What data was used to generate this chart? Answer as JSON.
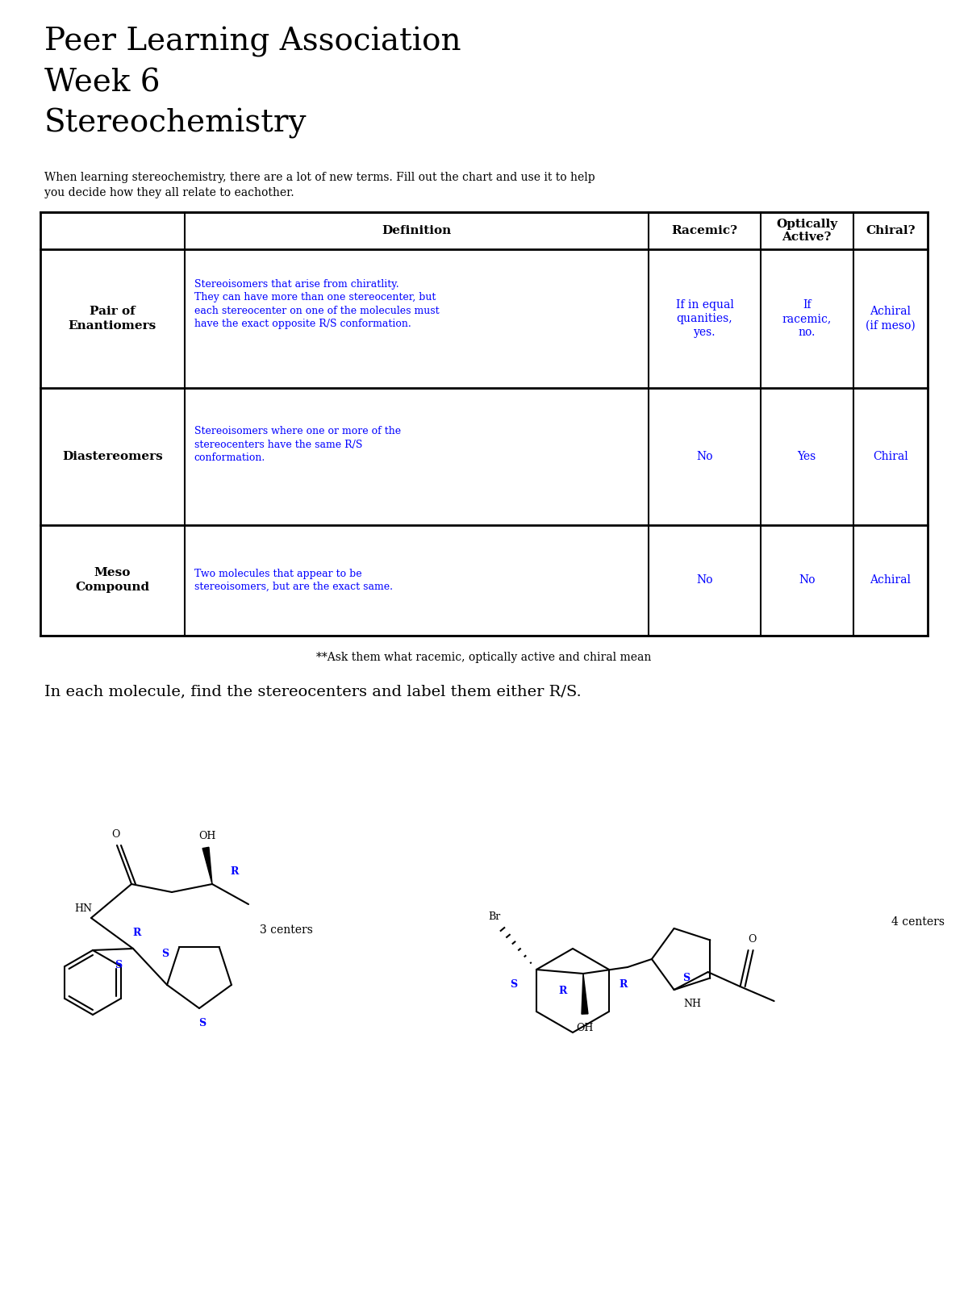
{
  "title": "Peer Learning Association\nWeek 6\nStereochemistry",
  "intro_text": "When learning stereochemistry, there are a lot of new terms. Fill out the chart and use it to help\nyou decide how they all relate to eachother.",
  "table_headers": [
    "",
    "Definition",
    "Racemic?",
    "Optically\nActive?",
    "Chiral?"
  ],
  "table_rows": [
    {
      "term": "Pair of\nEnantiomers",
      "definition": "Stereoisomers that arise from chiratlity.\nThey can have more than one stereocenter, but\neach stereocenter on one of the molecules must\nhave the exact opposite R/S conformation.",
      "racemic": "If in equal\nquanities,\nyes.",
      "optically": "If\nracemic,\nno.",
      "chiral": "Achiral\n(if meso)"
    },
    {
      "term": "Diastereomers",
      "definition": "Stereoisomers where one or more of the\nstereocenters have the same R/S\nconformation.",
      "racemic": "No",
      "optically": "Yes",
      "chiral": "Chiral"
    },
    {
      "term": "Meso\nCompound",
      "definition": "Two molecules that appear to be\nstereoisomers, but are the exact same.",
      "racemic": "No",
      "optically": "No",
      "chiral": "Achiral"
    }
  ],
  "footnote": "**Ask them what racemic, optically active and chiral mean",
  "molecule_text": "In each molecule, find the stereocenters and label them either R/S.",
  "label_3centers": "3 centers",
  "label_4centers": "4 centers",
  "blue_color": "#0000FF",
  "black_color": "#000000",
  "bg_color": "#FFFFFF",
  "title_fontsize": 28,
  "header_fontsize": 11,
  "body_fontsize": 10,
  "term_fontsize": 11,
  "intro_fontsize": 10,
  "footnote_fontsize": 10
}
